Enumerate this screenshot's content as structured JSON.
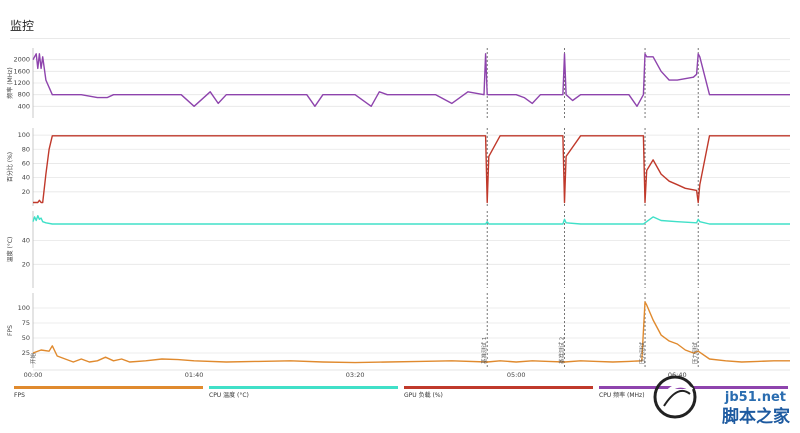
{
  "page": {
    "title": "监控"
  },
  "chart_data": {
    "type": "line",
    "x_ticks": [
      "00:00",
      "01:40",
      "03:20",
      "05:00",
      "06:40"
    ],
    "x_tick_seconds": [
      0,
      100,
      200,
      300,
      400
    ],
    "x_range": [
      0,
      470
    ],
    "events": [
      {
        "t": 0,
        "label": "开始"
      },
      {
        "t": 282,
        "label": "基准测试 1"
      },
      {
        "t": 330,
        "label": "基准测试 2"
      },
      {
        "t": 380,
        "label": "压力测试"
      },
      {
        "t": 413,
        "label": "压力测试"
      }
    ],
    "panels": [
      {
        "id": "freq",
        "ylabel": "频率 (MHz)",
        "yticks": [
          400,
          800,
          1200,
          1600,
          2000
        ],
        "yrange": [
          0,
          2400
        ],
        "color": "#8e44ad",
        "x": [
          0,
          2,
          3,
          4,
          5,
          6,
          8,
          12,
          20,
          30,
          40,
          46,
          50,
          55,
          60,
          70,
          80,
          88,
          92,
          100,
          110,
          115,
          120,
          130,
          140,
          145,
          150,
          160,
          170,
          175,
          180,
          190,
          200,
          210,
          215,
          220,
          230,
          240,
          250,
          260,
          270,
          280,
          281,
          282,
          283,
          290,
          300,
          305,
          310,
          315,
          320,
          329,
          330,
          331,
          335,
          340,
          345,
          350,
          360,
          370,
          375,
          379,
          380,
          381,
          385,
          390,
          395,
          400,
          410,
          412,
          413,
          414,
          420,
          430,
          440,
          450,
          460,
          470
        ],
        "y": [
          2000,
          2200,
          1700,
          2200,
          1700,
          2100,
          1300,
          800,
          800,
          800,
          700,
          700,
          800,
          800,
          800,
          800,
          800,
          800,
          800,
          400,
          900,
          500,
          800,
          800,
          800,
          800,
          800,
          800,
          800,
          400,
          800,
          800,
          800,
          400,
          900,
          800,
          800,
          800,
          800,
          500,
          900,
          800,
          2200,
          800,
          800,
          800,
          800,
          700,
          500,
          800,
          800,
          800,
          2200,
          800,
          600,
          800,
          800,
          800,
          800,
          800,
          400,
          800,
          2200,
          2100,
          2100,
          1600,
          1300,
          1300,
          1400,
          1500,
          2200,
          2100,
          800,
          800,
          800,
          800,
          800,
          800
        ]
      },
      {
        "id": "gpu",
        "ylabel": "百分比 (%)",
        "yticks": [
          20,
          40,
          60,
          80,
          100
        ],
        "yrange": [
          0,
          110
        ],
        "color": "#c0392b",
        "x": [
          0,
          3,
          4,
          5,
          6,
          8,
          10,
          12,
          20,
          30,
          100,
          200,
          281,
          282,
          283,
          290,
          329,
          330,
          331,
          340,
          379,
          380,
          381,
          385,
          390,
          395,
          400,
          405,
          412,
          413,
          414,
          420,
          430,
          470
        ],
        "y": [
          5,
          5,
          8,
          5,
          5,
          45,
          80,
          99,
          99,
          99,
          99,
          99,
          99,
          5,
          70,
          99,
          99,
          5,
          70,
          99,
          99,
          5,
          50,
          65,
          45,
          35,
          30,
          25,
          22,
          5,
          30,
          99,
          99,
          99
        ]
      },
      {
        "id": "temp",
        "ylabel": "温度 (°C)",
        "yticks": [
          20,
          40
        ],
        "yrange": [
          0,
          65
        ],
        "color": "#40e0c8",
        "x": [
          0,
          1,
          2,
          3,
          4,
          5,
          6,
          8,
          12,
          20,
          50,
          100,
          150,
          200,
          250,
          281,
          282,
          283,
          290,
          329,
          330,
          331,
          340,
          379,
          380,
          385,
          390,
          400,
          412,
          413,
          414,
          420,
          470
        ],
        "y": [
          56,
          60,
          57,
          61,
          58,
          59,
          56,
          55,
          54,
          54,
          54,
          54,
          54,
          54,
          54,
          54,
          56,
          54,
          54,
          54,
          58,
          55,
          54,
          54,
          55,
          60,
          57,
          56,
          55,
          58,
          56,
          54,
          54
        ]
      },
      {
        "id": "fps",
        "ylabel": "FPS",
        "yticks": [
          25,
          50,
          75,
          100
        ],
        "yrange": [
          0,
          125
        ],
        "color": "#e08a2e",
        "x": [
          0,
          5,
          10,
          12,
          15,
          20,
          25,
          30,
          35,
          40,
          45,
          50,
          55,
          60,
          70,
          80,
          90,
          100,
          120,
          140,
          160,
          180,
          200,
          220,
          240,
          260,
          282,
          290,
          300,
          310,
          320,
          330,
          340,
          350,
          360,
          370,
          378,
          380,
          381,
          385,
          390,
          395,
          400,
          405,
          410,
          413,
          420,
          430,
          440,
          450,
          460,
          470
        ],
        "y": [
          25,
          30,
          28,
          37,
          20,
          15,
          10,
          15,
          10,
          12,
          18,
          12,
          15,
          10,
          12,
          15,
          14,
          12,
          10,
          11,
          12,
          10,
          9,
          10,
          11,
          12,
          10,
          12,
          10,
          12,
          11,
          10,
          12,
          11,
          10,
          11,
          12,
          110,
          105,
          80,
          55,
          45,
          40,
          30,
          25,
          28,
          15,
          12,
          10,
          11,
          12,
          12
        ]
      }
    ],
    "legend": [
      {
        "label": "FPS",
        "color": "#e08a2e"
      },
      {
        "label": "CPU 温度 (°C)",
        "color": "#40e0c8"
      },
      {
        "label": "GPU 负载 (%)",
        "color": "#c0392b"
      },
      {
        "label": "CPU 频率 (MHz)",
        "color": "#8e44ad"
      }
    ]
  },
  "watermark": {
    "text": "jb51.net",
    "sub": "脚本之家"
  }
}
